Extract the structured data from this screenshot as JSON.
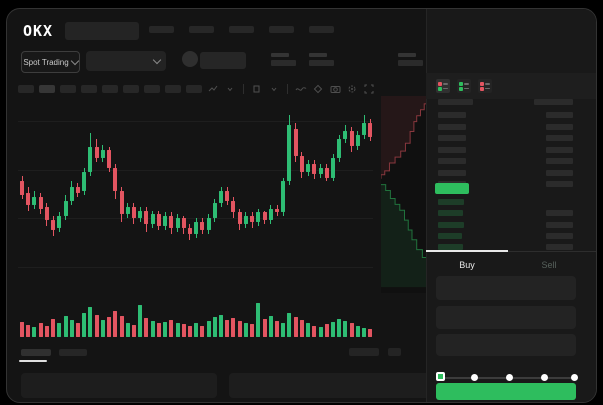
{
  "brand": {
    "logo_text": "OKX"
  },
  "nav": {
    "placeholder_count": 5
  },
  "subbar": {
    "market_selector_label": "Spot Trading",
    "stat_placeholder_count": 5
  },
  "toolbar": {
    "interval_placeholder_count": 9,
    "active_interval_index": 1,
    "icons": [
      "indicator-icon",
      "chevron-down-icon",
      "separator",
      "overlay-icon",
      "chevron-down-icon",
      "separator",
      "line-tools-icon",
      "magnet-icon",
      "camera-icon",
      "settings-gear-icon",
      "fullscreen-icon"
    ]
  },
  "colors": {
    "candle_green": "#2EBD74",
    "candle_red": "#E35561",
    "accent_green": "#2EBD5E",
    "bid_row_green": "rgba(46,189,94,0.22)",
    "depth_ask_line": "rgba(227,85,97,0.55)",
    "depth_ask_fill": "rgba(227,85,97,0.10)",
    "depth_bid_line": "rgba(46,189,94,0.55)",
    "depth_bid_fill": "rgba(46,189,94,0.10)"
  },
  "chart_data": {
    "type": "candlestick",
    "note": "values are percent of pane height, 0=bottom 100=top; candles as [open,close,high,low]; volume as percent of volume pane",
    "gridlines_pct": [
      13,
      38,
      63,
      88
    ],
    "candles": [
      [
        57,
        50,
        60,
        48
      ],
      [
        51,
        45,
        54,
        42
      ],
      [
        45,
        49,
        52,
        43
      ],
      [
        49,
        43,
        51,
        40
      ],
      [
        44,
        37,
        46,
        34
      ],
      [
        37,
        32,
        39,
        29
      ],
      [
        33,
        39,
        41,
        31
      ],
      [
        39,
        47,
        50,
        37
      ],
      [
        47,
        54,
        57,
        45
      ],
      [
        54,
        51,
        56,
        49
      ],
      [
        52,
        62,
        64,
        50
      ],
      [
        62,
        75,
        82,
        60
      ],
      [
        75,
        69,
        79,
        67
      ],
      [
        69,
        73,
        76,
        67
      ],
      [
        73,
        64,
        75,
        62
      ],
      [
        64,
        52,
        66,
        48
      ],
      [
        52,
        40,
        54,
        36
      ],
      [
        40,
        44,
        46,
        38
      ],
      [
        44,
        38,
        46,
        35
      ],
      [
        38,
        42,
        44,
        36
      ],
      [
        42,
        35,
        44,
        31
      ],
      [
        35,
        40,
        42,
        33
      ],
      [
        40,
        34,
        42,
        32
      ],
      [
        34,
        39,
        41,
        32
      ],
      [
        39,
        33,
        41,
        30
      ],
      [
        33,
        38,
        40,
        31
      ],
      [
        38,
        33,
        39,
        30
      ],
      [
        33,
        30,
        35,
        27
      ],
      [
        30,
        36,
        38,
        28
      ],
      [
        36,
        32,
        38,
        30
      ],
      [
        32,
        38,
        40,
        30
      ],
      [
        38,
        46,
        48,
        36
      ],
      [
        46,
        52,
        54,
        44
      ],
      [
        52,
        47,
        54,
        45
      ],
      [
        47,
        41,
        49,
        38
      ],
      [
        41,
        35,
        43,
        32
      ],
      [
        35,
        39,
        41,
        33
      ],
      [
        39,
        36,
        41,
        33
      ],
      [
        36,
        41,
        43,
        34
      ],
      [
        41,
        37,
        42,
        35
      ],
      [
        37,
        43,
        45,
        35
      ],
      [
        43,
        41,
        45,
        39
      ],
      [
        41,
        57,
        59,
        39
      ],
      [
        57,
        86,
        91,
        55
      ],
      [
        84,
        70,
        87,
        67
      ],
      [
        70,
        62,
        72,
        59
      ],
      [
        62,
        66,
        68,
        60
      ],
      [
        66,
        61,
        68,
        58
      ],
      [
        61,
        64,
        66,
        59
      ],
      [
        64,
        59,
        66,
        57
      ],
      [
        59,
        69,
        71,
        57
      ],
      [
        69,
        79,
        81,
        67
      ],
      [
        79,
        83,
        86,
        77
      ],
      [
        83,
        75,
        85,
        72
      ],
      [
        75,
        81,
        83,
        73
      ],
      [
        81,
        87,
        91,
        79
      ],
      [
        87,
        80,
        89,
        78
      ]
    ],
    "volume": [
      40,
      32,
      26,
      36,
      30,
      48,
      36,
      55,
      45,
      38,
      62,
      80,
      58,
      46,
      52,
      68,
      56,
      38,
      32,
      85,
      50,
      42,
      36,
      40,
      46,
      38,
      33,
      28,
      36,
      30,
      42,
      52,
      58,
      46,
      50,
      42,
      36,
      33,
      90,
      48,
      55,
      42,
      38,
      62,
      52,
      45,
      36,
      30,
      26,
      33,
      40,
      48,
      42,
      36,
      28,
      24,
      20
    ],
    "depth": {
      "asks_points": [
        [
          1,
          0.04
        ],
        [
          0.92,
          0.07
        ],
        [
          0.84,
          0.1
        ],
        [
          0.76,
          0.13
        ],
        [
          0.7,
          0.18
        ],
        [
          0.62,
          0.24
        ],
        [
          0.52,
          0.28
        ],
        [
          0.42,
          0.31
        ],
        [
          0.3,
          0.34
        ],
        [
          0.18,
          0.38
        ],
        [
          0.08,
          0.4
        ],
        [
          0,
          0.42
        ]
      ],
      "bids_points": [
        [
          0,
          0.45
        ],
        [
          0.1,
          0.48
        ],
        [
          0.2,
          0.52
        ],
        [
          0.3,
          0.55
        ],
        [
          0.4,
          0.58
        ],
        [
          0.5,
          0.63
        ],
        [
          0.58,
          0.68
        ],
        [
          0.66,
          0.73
        ],
        [
          0.76,
          0.78
        ],
        [
          0.88,
          0.82
        ],
        [
          1,
          0.86
        ]
      ],
      "bids_bottom": 0.97
    }
  },
  "orderbook": {
    "mode_icons": [
      {
        "name": "book-both-icon",
        "squares": [
          "#E35561",
          "#2EBD5E"
        ],
        "active": true
      },
      {
        "name": "book-bids-icon",
        "squares": [
          "#2EBD5E",
          "#2EBD5E"
        ],
        "active": false
      },
      {
        "name": "book-asks-icon",
        "squares": [
          "#E35561",
          "#E35561"
        ],
        "active": false
      }
    ],
    "ask_row_count": 7,
    "bid_row_count": 5,
    "bid_left_widths": [
      26,
      25,
      26,
      24,
      25
    ],
    "bid_rows_with_amount": [
      1,
      2,
      3,
      4
    ]
  },
  "trade_form": {
    "tabs": [
      {
        "label": "Buy",
        "active": true
      },
      {
        "label": "Sell",
        "active": false
      }
    ],
    "field_count": 3,
    "slider_stop_count": 5,
    "slider_value_index": 0
  }
}
